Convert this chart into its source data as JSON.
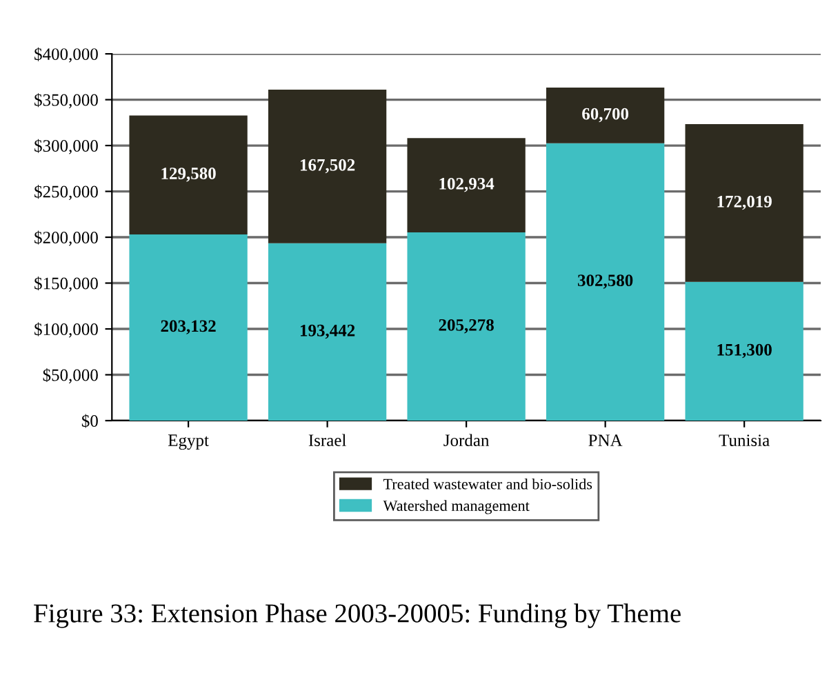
{
  "chart_data": {
    "type": "bar",
    "stacked": true,
    "categories": [
      "Egypt",
      "Israel",
      "Jordan",
      "PNA",
      "Tunisia"
    ],
    "series": [
      {
        "name": "Watershed management",
        "color": "#3fbfc2",
        "values": [
          203132,
          193442,
          205278,
          302580,
          151300
        ],
        "value_labels": [
          "203,132",
          "193,442",
          "205,278",
          "302,580",
          "151,300"
        ]
      },
      {
        "name": "Treated wastewater and bio-solids",
        "color": "#2e2b1f",
        "values": [
          129580,
          167502,
          102934,
          60700,
          172019
        ],
        "value_labels": [
          "129,580",
          "167,502",
          "102,934",
          "60,700",
          "172,019"
        ]
      }
    ],
    "ylim": [
      0,
      400000
    ],
    "yticks": [
      {
        "value": 0,
        "label": "$0"
      },
      {
        "value": 50000,
        "label": "$50,000"
      },
      {
        "value": 100000,
        "label": "$100,000"
      },
      {
        "value": 150000,
        "label": "$150,000"
      },
      {
        "value": 200000,
        "label": "$200,000"
      },
      {
        "value": 250000,
        "label": "$250,000"
      },
      {
        "value": 300000,
        "label": "$300,000"
      },
      {
        "value": 350000,
        "label": "$350,000"
      },
      {
        "value": 400000,
        "label": "$400,000"
      }
    ],
    "grid": "y",
    "legend": "bottom",
    "annotations": [
      "Figure 33: Extension Phase 2003-20005: Funding by Theme"
    ]
  }
}
